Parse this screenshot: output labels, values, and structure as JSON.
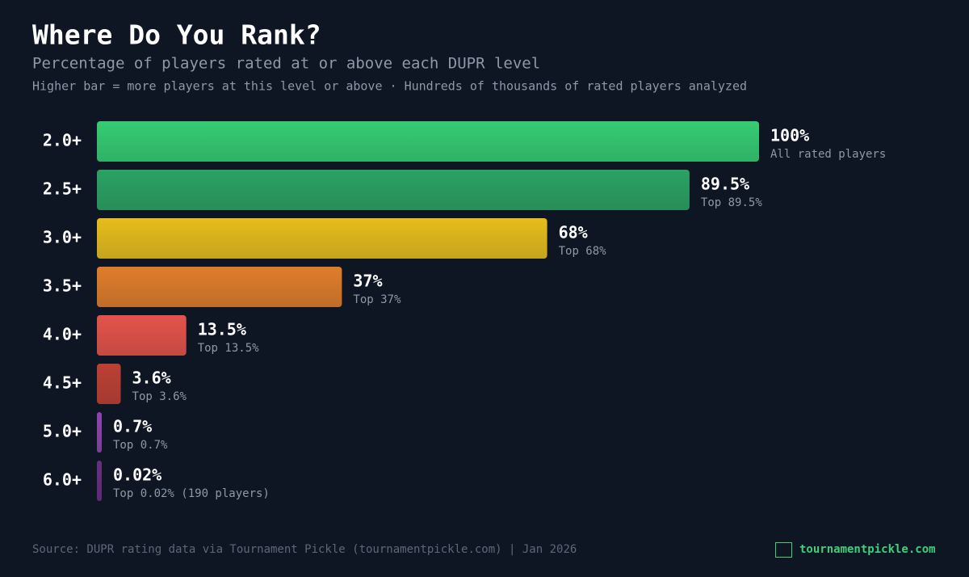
{
  "chart_data": {
    "type": "bar",
    "orientation": "horizontal",
    "title": "Where Do You Rank?",
    "subtitle": "Percentage of players rated at or above each DUPR level",
    "note": "Higher bar = more players at this level or above · Hundreds of thousands of rated players analyzed",
    "categories": [
      "2.0+",
      "2.5+",
      "3.0+",
      "3.5+",
      "4.0+",
      "4.5+",
      "5.0+",
      "6.0+"
    ],
    "values": [
      100,
      89.5,
      68,
      37,
      13.5,
      3.6,
      0.7,
      0.02
    ],
    "value_labels": [
      "100%",
      "89.5%",
      "68%",
      "37%",
      "13.5%",
      "3.6%",
      "0.7%",
      "0.02%"
    ],
    "sublabels": [
      "All rated players",
      "Top 89.5%",
      "Top 68%",
      "Top 37%",
      "Top 13.5%",
      "Top 3.6%",
      "Top 0.7%",
      "Top 0.02% (190 players)"
    ],
    "colors": [
      "#36cc72",
      "#2ca263",
      "#e6bd1c",
      "#df7d2a",
      "#e4534a",
      "#bd4034",
      "#8f45ad",
      "#6a2f80"
    ],
    "xlim": [
      0,
      100
    ],
    "source": "Source: DUPR rating data via Tournament Pickle (tournamentpickle.com) | Jan 2026",
    "brand": "tournamentpickle.com"
  }
}
